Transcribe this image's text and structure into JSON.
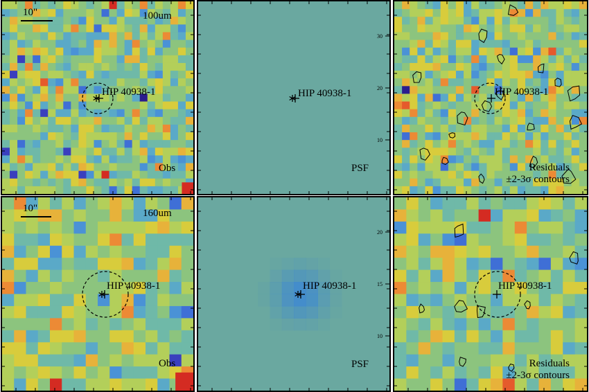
{
  "colors": {
    "palette": [
      "#2b1d8e",
      "#3a3fbe",
      "#3f6fd6",
      "#4a92d6",
      "#5aa9c8",
      "#6fb9a8",
      "#8cc47e",
      "#b3cf5a",
      "#d8cc3c",
      "#e7b23a",
      "#ec8a35",
      "#e55a2c",
      "#d42b22"
    ],
    "psf_background": "#6aa8a0",
    "psf_core": "#3f89d0",
    "contour": "#000000"
  },
  "rows": [
    {
      "wavelength": "100um",
      "scale_bar": "10\"",
      "target": "HIP 40938-1",
      "obs_label": "Obs",
      "psf_label": "PSF",
      "residual_label_1": "Residuals",
      "residual_label_2": "±2-3σ contours",
      "psf_ticks": [
        "30",
        "20",
        "10"
      ],
      "grid_size": 25
    },
    {
      "wavelength": "160um",
      "scale_bar": "10\"",
      "target": "HIP 40938-1",
      "obs_label": "Obs",
      "psf_label": "PSF",
      "residual_label_1": "Residuals",
      "residual_label_2": "±2-3σ contours",
      "psf_ticks": [
        "20",
        "15",
        "10"
      ],
      "grid_size": 16
    }
  ]
}
